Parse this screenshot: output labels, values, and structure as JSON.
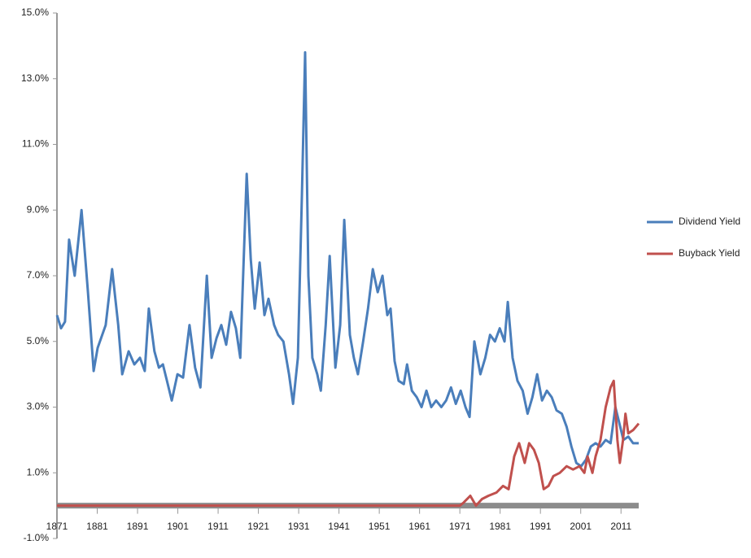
{
  "chart_data": {
    "type": "line",
    "ylim": [
      -1,
      15
    ],
    "yticks": [
      {
        "value": 15,
        "label": "15.0%"
      },
      {
        "value": 13,
        "label": "13.0%"
      },
      {
        "value": 11,
        "label": "11.0%"
      },
      {
        "value": 9,
        "label": "9.0%"
      },
      {
        "value": 7,
        "label": "7.0%"
      },
      {
        "value": 5,
        "label": "5.0%"
      },
      {
        "value": 3,
        "label": "3.0%"
      },
      {
        "value": 1,
        "label": "1.0%"
      },
      {
        "value": -1,
        "label": "-1.0%"
      }
    ],
    "xlim": [
      1871,
      2016
    ],
    "xticks": [
      1871,
      1881,
      1891,
      1901,
      1911,
      1921,
      1931,
      1941,
      1951,
      1961,
      1971,
      1981,
      1991,
      2001,
      2011
    ],
    "legend": "right",
    "series": [
      {
        "name": "Dividend Yield",
        "color": "#4a7ebb",
        "x": [
          1871.0,
          1872.0,
          1873.0,
          1874.0,
          1875.4,
          1877.1,
          1878.7,
          1880.1,
          1881.1,
          1883.1,
          1884.7,
          1886.2,
          1887.2,
          1888.8,
          1890.2,
          1891.6,
          1892.8,
          1893.8,
          1895.2,
          1896.3,
          1897.3,
          1898.3,
          1899.5,
          1900.9,
          1902.3,
          1903.9,
          1905.3,
          1906.6,
          1908.2,
          1909.4,
          1910.6,
          1911.8,
          1913.0,
          1914.2,
          1915.4,
          1916.5,
          1918.1,
          1919.1,
          1920.1,
          1921.3,
          1922.5,
          1923.5,
          1924.9,
          1925.9,
          1927.2,
          1928.6,
          1929.6,
          1930.8,
          1931.8,
          1932.6,
          1933.4,
          1934.4,
          1935.6,
          1936.5,
          1937.7,
          1938.7,
          1940.1,
          1941.3,
          1942.3,
          1943.7,
          1944.7,
          1945.7,
          1947.0,
          1948.2,
          1949.4,
          1950.6,
          1951.8,
          1953.0,
          1953.8,
          1954.8,
          1955.8,
          1957.1,
          1957.9,
          1959.1,
          1960.3,
          1961.5,
          1962.7,
          1963.9,
          1965.1,
          1966.4,
          1967.6,
          1968.8,
          1970.0,
          1971.2,
          1972.4,
          1973.4,
          1974.6,
          1976.1,
          1977.3,
          1978.5,
          1979.7,
          1980.9,
          1982.1,
          1982.9,
          1984.1,
          1985.3,
          1986.6,
          1987.8,
          1989.0,
          1990.2,
          1991.4,
          1992.6,
          1993.8,
          1995.0,
          1996.3,
          1997.5,
          1998.7,
          1999.9,
          2001.1,
          2002.3,
          2003.5,
          2004.7,
          2005.9,
          2007.2,
          2008.4,
          2009.6,
          2010.4,
          2011.6,
          2012.8,
          2014.0,
          2015.4
        ],
        "values": [
          5.8,
          5.4,
          5.6,
          8.1,
          7.0,
          9.0,
          6.5,
          4.1,
          4.8,
          5.5,
          7.2,
          5.5,
          4.0,
          4.7,
          4.3,
          4.5,
          4.1,
          6.0,
          4.7,
          4.2,
          4.3,
          3.8,
          3.2,
          4.0,
          3.9,
          5.5,
          4.2,
          3.6,
          7.0,
          4.5,
          5.1,
          5.5,
          4.9,
          5.9,
          5.4,
          4.5,
          10.1,
          7.5,
          6.0,
          7.4,
          5.8,
          6.3,
          5.5,
          5.2,
          5.0,
          4.0,
          3.1,
          4.5,
          9.5,
          13.8,
          7.0,
          4.5,
          4.0,
          3.5,
          5.5,
          7.6,
          4.2,
          5.5,
          8.7,
          5.2,
          4.5,
          4.0,
          5.0,
          6.0,
          7.2,
          6.5,
          7.0,
          5.8,
          6.0,
          4.4,
          3.8,
          3.7,
          4.3,
          3.5,
          3.3,
          3.0,
          3.5,
          3.0,
          3.2,
          3.0,
          3.2,
          3.6,
          3.1,
          3.5,
          3.0,
          2.7,
          5.0,
          4.0,
          4.5,
          5.2,
          5.0,
          5.4,
          5.0,
          6.2,
          4.5,
          3.8,
          3.5,
          2.8,
          3.3,
          4.0,
          3.2,
          3.5,
          3.3,
          2.9,
          2.8,
          2.4,
          1.8,
          1.3,
          1.2,
          1.4,
          1.8,
          1.9,
          1.8,
          2.0,
          1.9,
          3.0,
          2.6,
          2.0,
          2.1,
          1.9,
          1.9
        ]
      },
      {
        "name": "Buyback Yield",
        "color": "#c0504d",
        "x": [
          1871.0,
          1971.0,
          1972.0,
          1973.6,
          1975.0,
          1976.5,
          1978.1,
          1980.1,
          1981.7,
          1983.1,
          1984.5,
          1985.7,
          1987.1,
          1988.2,
          1989.4,
          1990.6,
          1991.8,
          1993.0,
          1994.2,
          1995.8,
          1997.5,
          1999.1,
          2000.7,
          2001.9,
          2002.7,
          2003.9,
          2004.7,
          2005.9,
          2007.2,
          2008.4,
          2009.2,
          2010.1,
          2010.7,
          2011.5,
          2012.1,
          2012.8,
          2014.0,
          2015.4
        ],
        "values": [
          0,
          0,
          0.1,
          0.3,
          0.0,
          0.2,
          0.3,
          0.4,
          0.6,
          0.5,
          1.5,
          1.9,
          1.3,
          1.9,
          1.7,
          1.3,
          0.5,
          0.6,
          0.9,
          1.0,
          1.2,
          1.1,
          1.2,
          1.0,
          1.5,
          1.0,
          1.5,
          2.0,
          3.0,
          3.6,
          3.8,
          2.0,
          1.3,
          2.0,
          2.8,
          2.2,
          2.3,
          2.5
        ]
      }
    ]
  }
}
